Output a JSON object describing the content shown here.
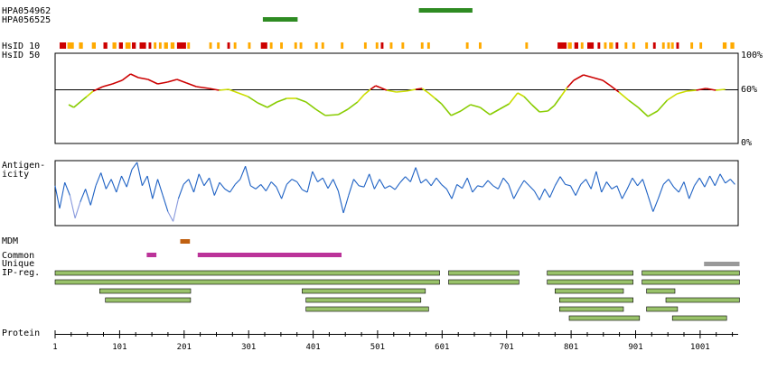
{
  "chart_data": {
    "type": "protein-feature-map",
    "protein_length": 1060,
    "antibodies": [
      {
        "name": "HPA054962",
        "start": 565,
        "end": 648
      },
      {
        "name": "HPA056525",
        "start": 323,
        "end": 377
      }
    ],
    "track_labels": {
      "hsid10": "HsID 10",
      "hsid50": "HsID 50",
      "antigenicity": "Antigen-\nicity",
      "mdm": "MDM",
      "common": "Common",
      "unique": "Unique",
      "ipreg": "IP-reg.",
      "protein": "Protein"
    },
    "hsid_axis": {
      "ticks": [
        "100%",
        "60%",
        "0%"
      ],
      "threshold": 60
    },
    "hsid10_segments": [
      {
        "start": 8,
        "end": 18,
        "level": "high"
      },
      {
        "start": 20,
        "end": 30,
        "level": "mid"
      },
      {
        "start": 38,
        "end": 44,
        "level": "mid"
      },
      {
        "start": 58,
        "end": 64,
        "level": "mid"
      },
      {
        "start": 76,
        "end": 82,
        "level": "high"
      },
      {
        "start": 90,
        "end": 96,
        "level": "mid"
      },
      {
        "start": 100,
        "end": 106,
        "level": "high"
      },
      {
        "start": 110,
        "end": 118,
        "level": "mid"
      },
      {
        "start": 120,
        "end": 126,
        "level": "high"
      },
      {
        "start": 132,
        "end": 142,
        "level": "high"
      },
      {
        "start": 146,
        "end": 150,
        "level": "high"
      },
      {
        "start": 154,
        "end": 158,
        "level": "mid"
      },
      {
        "start": 162,
        "end": 166,
        "level": "mid"
      },
      {
        "start": 170,
        "end": 176,
        "level": "mid"
      },
      {
        "start": 180,
        "end": 186,
        "level": "mid"
      },
      {
        "start": 190,
        "end": 204,
        "level": "high"
      },
      {
        "start": 206,
        "end": 210,
        "level": "mid"
      },
      {
        "start": 240,
        "end": 244,
        "level": "mid"
      },
      {
        "start": 252,
        "end": 256,
        "level": "mid"
      },
      {
        "start": 268,
        "end": 272,
        "level": "high"
      },
      {
        "start": 278,
        "end": 282,
        "level": "mid"
      },
      {
        "start": 300,
        "end": 304,
        "level": "mid"
      },
      {
        "start": 320,
        "end": 330,
        "level": "high"
      },
      {
        "start": 334,
        "end": 338,
        "level": "mid"
      },
      {
        "start": 350,
        "end": 354,
        "level": "mid"
      },
      {
        "start": 372,
        "end": 376,
        "level": "mid"
      },
      {
        "start": 380,
        "end": 384,
        "level": "mid"
      },
      {
        "start": 404,
        "end": 408,
        "level": "mid"
      },
      {
        "start": 414,
        "end": 418,
        "level": "mid"
      },
      {
        "start": 444,
        "end": 448,
        "level": "mid"
      },
      {
        "start": 480,
        "end": 484,
        "level": "mid"
      },
      {
        "start": 498,
        "end": 502,
        "level": "mid"
      },
      {
        "start": 506,
        "end": 510,
        "level": "high"
      },
      {
        "start": 520,
        "end": 524,
        "level": "mid"
      },
      {
        "start": 538,
        "end": 542,
        "level": "mid"
      },
      {
        "start": 568,
        "end": 572,
        "level": "mid"
      },
      {
        "start": 578,
        "end": 582,
        "level": "mid"
      },
      {
        "start": 638,
        "end": 642,
        "level": "mid"
      },
      {
        "start": 658,
        "end": 662,
        "level": "mid"
      },
      {
        "start": 730,
        "end": 734,
        "level": "mid"
      },
      {
        "start": 780,
        "end": 794,
        "level": "high"
      },
      {
        "start": 796,
        "end": 802,
        "level": "mid"
      },
      {
        "start": 806,
        "end": 812,
        "level": "high"
      },
      {
        "start": 816,
        "end": 820,
        "level": "mid"
      },
      {
        "start": 826,
        "end": 836,
        "level": "high"
      },
      {
        "start": 842,
        "end": 846,
        "level": "high"
      },
      {
        "start": 852,
        "end": 856,
        "level": "mid"
      },
      {
        "start": 860,
        "end": 866,
        "level": "mid"
      },
      {
        "start": 870,
        "end": 874,
        "level": "high"
      },
      {
        "start": 884,
        "end": 888,
        "level": "mid"
      },
      {
        "start": 896,
        "end": 900,
        "level": "mid"
      },
      {
        "start": 916,
        "end": 920,
        "level": "mid"
      },
      {
        "start": 928,
        "end": 932,
        "level": "high"
      },
      {
        "start": 942,
        "end": 946,
        "level": "mid"
      },
      {
        "start": 950,
        "end": 954,
        "level": "mid"
      },
      {
        "start": 956,
        "end": 960,
        "level": "mid"
      },
      {
        "start": 964,
        "end": 968,
        "level": "high"
      },
      {
        "start": 986,
        "end": 990,
        "level": "mid"
      },
      {
        "start": 1000,
        "end": 1004,
        "level": "mid"
      },
      {
        "start": 1036,
        "end": 1042,
        "level": "mid"
      },
      {
        "start": 1048,
        "end": 1054,
        "level": "mid"
      }
    ],
    "hsid50_profile": [
      [
        22,
        43
      ],
      [
        30,
        40
      ],
      [
        40,
        46
      ],
      [
        50,
        52
      ],
      [
        60,
        58
      ],
      [
        75,
        63
      ],
      [
        90,
        66
      ],
      [
        105,
        70
      ],
      [
        118,
        77
      ],
      [
        130,
        73
      ],
      [
        145,
        71
      ],
      [
        160,
        66
      ],
      [
        175,
        68
      ],
      [
        190,
        71
      ],
      [
        205,
        67
      ],
      [
        220,
        63
      ],
      [
        240,
        61
      ],
      [
        255,
        59
      ],
      [
        270,
        60
      ],
      [
        285,
        56
      ],
      [
        300,
        52
      ],
      [
        315,
        45
      ],
      [
        330,
        40
      ],
      [
        345,
        46
      ],
      [
        360,
        50
      ],
      [
        375,
        50
      ],
      [
        390,
        46
      ],
      [
        405,
        38
      ],
      [
        420,
        31
      ],
      [
        440,
        32
      ],
      [
        455,
        38
      ],
      [
        470,
        46
      ],
      [
        480,
        54
      ],
      [
        490,
        60
      ],
      [
        498,
        64
      ],
      [
        505,
        62
      ],
      [
        515,
        59
      ],
      [
        530,
        57
      ],
      [
        545,
        58
      ],
      [
        560,
        60
      ],
      [
        570,
        61
      ],
      [
        580,
        56
      ],
      [
        590,
        50
      ],
      [
        600,
        44
      ],
      [
        615,
        31
      ],
      [
        630,
        36
      ],
      [
        645,
        43
      ],
      [
        660,
        40
      ],
      [
        675,
        32
      ],
      [
        690,
        38
      ],
      [
        705,
        44
      ],
      [
        718,
        56
      ],
      [
        728,
        52
      ],
      [
        740,
        43
      ],
      [
        752,
        35
      ],
      [
        765,
        36
      ],
      [
        775,
        42
      ],
      [
        785,
        52
      ],
      [
        795,
        62
      ],
      [
        805,
        70
      ],
      [
        820,
        76
      ],
      [
        835,
        73
      ],
      [
        850,
        70
      ],
      [
        862,
        64
      ],
      [
        875,
        57
      ],
      [
        890,
        48
      ],
      [
        905,
        40
      ],
      [
        920,
        30
      ],
      [
        935,
        36
      ],
      [
        950,
        48
      ],
      [
        965,
        55
      ],
      [
        980,
        58
      ],
      [
        995,
        59
      ],
      [
        1010,
        61
      ],
      [
        1025,
        59
      ],
      [
        1040,
        60
      ]
    ],
    "antigenicity_profile": [
      [
        1,
        60
      ],
      [
        8,
        25
      ],
      [
        16,
        65
      ],
      [
        24,
        45
      ],
      [
        32,
        10
      ],
      [
        40,
        35
      ],
      [
        48,
        55
      ],
      [
        56,
        30
      ],
      [
        64,
        60
      ],
      [
        72,
        80
      ],
      [
        80,
        55
      ],
      [
        88,
        70
      ],
      [
        96,
        50
      ],
      [
        104,
        75
      ],
      [
        112,
        58
      ],
      [
        120,
        85
      ],
      [
        128,
        96
      ],
      [
        136,
        60
      ],
      [
        144,
        75
      ],
      [
        152,
        40
      ],
      [
        160,
        70
      ],
      [
        168,
        45
      ],
      [
        176,
        20
      ],
      [
        184,
        5
      ],
      [
        192,
        40
      ],
      [
        200,
        62
      ],
      [
        208,
        70
      ],
      [
        216,
        50
      ],
      [
        224,
        78
      ],
      [
        232,
        60
      ],
      [
        240,
        72
      ],
      [
        248,
        45
      ],
      [
        256,
        65
      ],
      [
        264,
        55
      ],
      [
        272,
        50
      ],
      [
        280,
        62
      ],
      [
        288,
        70
      ],
      [
        296,
        90
      ],
      [
        304,
        60
      ],
      [
        312,
        55
      ],
      [
        320,
        62
      ],
      [
        328,
        52
      ],
      [
        336,
        66
      ],
      [
        344,
        58
      ],
      [
        352,
        40
      ],
      [
        360,
        62
      ],
      [
        368,
        70
      ],
      [
        376,
        66
      ],
      [
        384,
        54
      ],
      [
        392,
        50
      ],
      [
        400,
        82
      ],
      [
        408,
        66
      ],
      [
        416,
        72
      ],
      [
        424,
        56
      ],
      [
        432,
        70
      ],
      [
        440,
        52
      ],
      [
        448,
        18
      ],
      [
        456,
        45
      ],
      [
        464,
        70
      ],
      [
        472,
        60
      ],
      [
        480,
        58
      ],
      [
        488,
        78
      ],
      [
        496,
        55
      ],
      [
        504,
        70
      ],
      [
        512,
        56
      ],
      [
        520,
        60
      ],
      [
        528,
        54
      ],
      [
        536,
        65
      ],
      [
        544,
        74
      ],
      [
        552,
        66
      ],
      [
        560,
        88
      ],
      [
        568,
        64
      ],
      [
        576,
        70
      ],
      [
        584,
        60
      ],
      [
        592,
        72
      ],
      [
        600,
        62
      ],
      [
        608,
        55
      ],
      [
        616,
        40
      ],
      [
        624,
        62
      ],
      [
        632,
        56
      ],
      [
        640,
        72
      ],
      [
        648,
        50
      ],
      [
        656,
        60
      ],
      [
        664,
        58
      ],
      [
        672,
        68
      ],
      [
        680,
        60
      ],
      [
        688,
        55
      ],
      [
        696,
        72
      ],
      [
        704,
        62
      ],
      [
        712,
        40
      ],
      [
        720,
        55
      ],
      [
        728,
        68
      ],
      [
        736,
        60
      ],
      [
        744,
        52
      ],
      [
        752,
        38
      ],
      [
        760,
        55
      ],
      [
        768,
        42
      ],
      [
        776,
        60
      ],
      [
        784,
        74
      ],
      [
        792,
        62
      ],
      [
        800,
        60
      ],
      [
        808,
        45
      ],
      [
        816,
        62
      ],
      [
        824,
        70
      ],
      [
        832,
        55
      ],
      [
        840,
        82
      ],
      [
        848,
        50
      ],
      [
        856,
        66
      ],
      [
        864,
        55
      ],
      [
        872,
        60
      ],
      [
        880,
        40
      ],
      [
        888,
        55
      ],
      [
        896,
        72
      ],
      [
        904,
        60
      ],
      [
        912,
        70
      ],
      [
        920,
        45
      ],
      [
        928,
        20
      ],
      [
        936,
        40
      ],
      [
        944,
        62
      ],
      [
        952,
        70
      ],
      [
        960,
        58
      ],
      [
        968,
        50
      ],
      [
        976,
        66
      ],
      [
        984,
        40
      ],
      [
        992,
        60
      ],
      [
        1000,
        72
      ],
      [
        1008,
        58
      ],
      [
        1016,
        75
      ],
      [
        1024,
        60
      ],
      [
        1032,
        78
      ],
      [
        1040,
        64
      ],
      [
        1048,
        70
      ],
      [
        1055,
        62
      ]
    ],
    "mdm": [
      {
        "start": 195,
        "end": 210
      }
    ],
    "common": [
      {
        "start": 143,
        "end": 158
      },
      {
        "start": 222,
        "end": 445
      }
    ],
    "unique": [
      {
        "start": 1007,
        "end": 1062
      }
    ],
    "ipreg_rows": [
      [
        {
          "start": 1,
          "end": 597
        },
        {
          "start": 611,
          "end": 720
        },
        {
          "start": 764,
          "end": 897
        },
        {
          "start": 911,
          "end": 1062
        }
      ],
      [
        {
          "start": 1,
          "end": 597
        },
        {
          "start": 611,
          "end": 720
        },
        {
          "start": 764,
          "end": 897
        },
        {
          "start": 911,
          "end": 1062
        }
      ],
      [
        {
          "start": 70,
          "end": 211
        },
        {
          "start": 384,
          "end": 575
        },
        {
          "start": 776,
          "end": 882
        },
        {
          "start": 918,
          "end": 962
        }
      ],
      [
        {
          "start": 79,
          "end": 211
        },
        {
          "start": 390,
          "end": 568
        },
        {
          "start": 783,
          "end": 897
        },
        {
          "start": 948,
          "end": 1062
        }
      ],
      [
        {
          "start": 390,
          "end": 580
        },
        {
          "start": 783,
          "end": 882
        },
        {
          "start": 918,
          "end": 966
        }
      ],
      [
        {
          "start": 798,
          "end": 907
        },
        {
          "start": 958,
          "end": 1042
        }
      ]
    ],
    "protein_ticks": [
      "1",
      "101",
      "201",
      "301",
      "401",
      "501",
      "601",
      "701",
      "801",
      "901",
      "1001"
    ],
    "colors": {
      "antibody": "#2e8b22",
      "hsid_high": "#cc0000",
      "hsid_mid": "#ffaa00",
      "hsid_low": "#ffdd55",
      "profile_high": "#cc0000",
      "profile_mid": "#ccdd00",
      "profile_low": "#88cc00",
      "antigenicity": "#1f62c4",
      "antigenicity_low": "#8899dd",
      "mdm": "#c06010",
      "common": "#bb3399",
      "unique": "#999999",
      "ipreg": "#99c26a"
    }
  }
}
